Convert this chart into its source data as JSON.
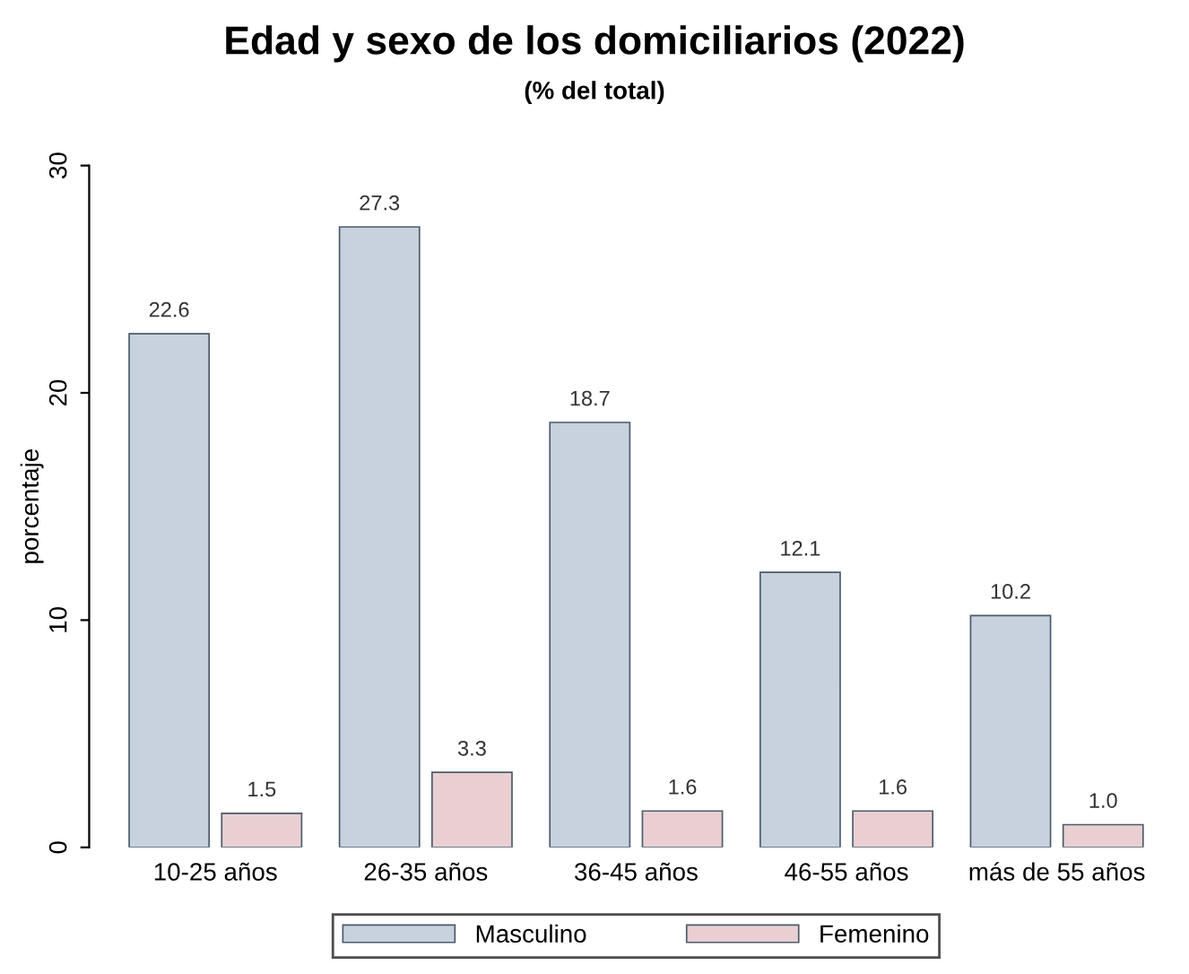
{
  "chart_data": {
    "type": "bar",
    "title": "Edad y sexo de los domiciliarios (2022)",
    "subtitle": "(% del total)",
    "ylabel": "porcentaje",
    "categories": [
      "10-25 años",
      "26-35 años",
      "36-45 años",
      "46-55 años",
      "más de 55 años"
    ],
    "series": [
      {
        "name": "Masculino",
        "color": "#c8d2de",
        "values": [
          22.6,
          27.3,
          18.7,
          12.1,
          10.2
        ],
        "value_labels": [
          "22.6",
          "27.3",
          "18.7",
          "12.1",
          "10.2"
        ]
      },
      {
        "name": "Femenino",
        "color": "#e9cfd2",
        "values": [
          1.5,
          3.3,
          1.6,
          1.6,
          1.0
        ],
        "value_labels": [
          "1.5",
          "3.3",
          "1.6",
          "1.6",
          "1.0"
        ]
      }
    ],
    "ylim": [
      0,
      30
    ],
    "yticks": [
      0,
      10,
      20,
      30
    ],
    "grid": false,
    "legend": "bottom"
  }
}
